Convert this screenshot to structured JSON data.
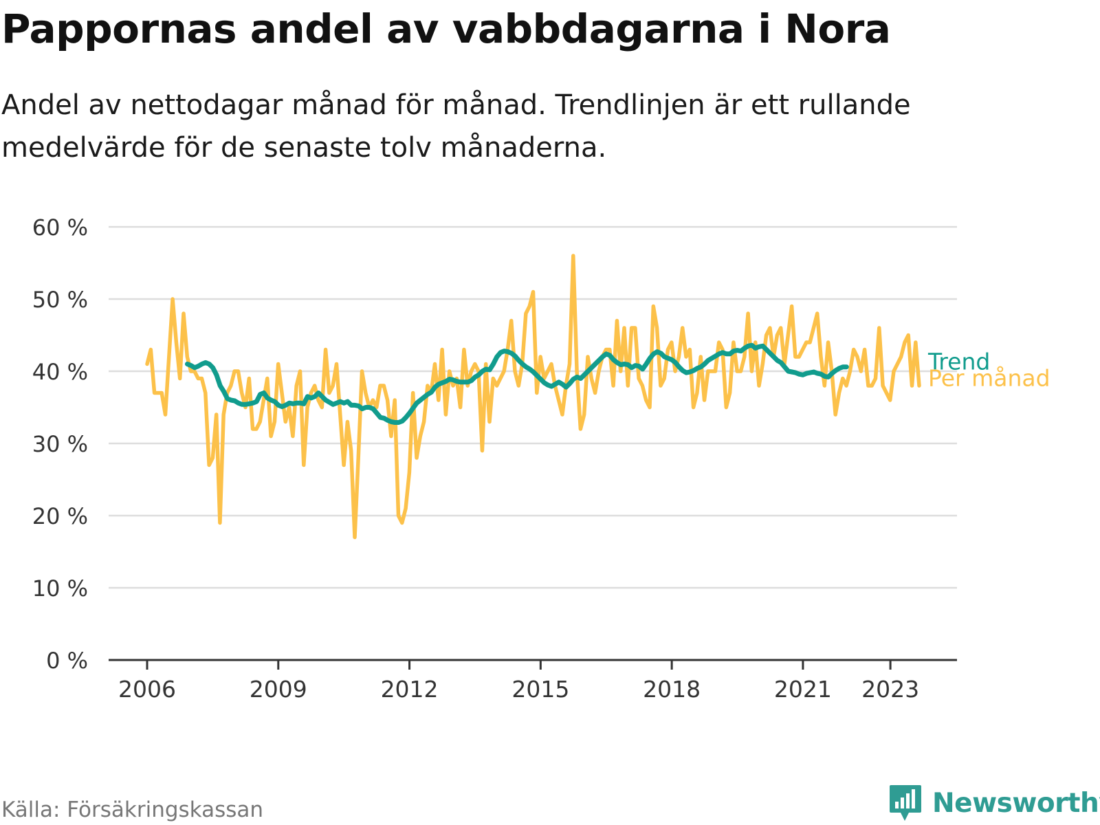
{
  "title": "Pappornas andel av vabbdagarna i Nora",
  "subtitle": "Andel av nettodagar månad för månad. Trendlinjen är ett rullande medelvärde för de senaste tolv månaderna.",
  "source": "Källa: Försäkringskassan",
  "brand": {
    "name": "Newsworthy",
    "icon": "newsworthy-logo-icon",
    "color": "#2f9c93"
  },
  "chart_data": {
    "type": "line",
    "title": "Pappornas andel av vabbdagarna i Nora",
    "ylim": [
      0,
      60
    ],
    "xlim": [
      2006.0,
      2023.9
    ],
    "y_ticks": [
      {
        "value": 0,
        "label": "0 %"
      },
      {
        "value": 10,
        "label": "10 %"
      },
      {
        "value": 20,
        "label": "20 %"
      },
      {
        "value": 30,
        "label": "30 %"
      },
      {
        "value": 40,
        "label": "40 %"
      },
      {
        "value": 50,
        "label": "50 %"
      },
      {
        "value": 60,
        "label": "60 %"
      }
    ],
    "x_ticks": [
      {
        "value": 2006,
        "label": "2006"
      },
      {
        "value": 2009,
        "label": "2009"
      },
      {
        "value": 2012,
        "label": "2012"
      },
      {
        "value": 2015,
        "label": "2015"
      },
      {
        "value": 2018,
        "label": "2018"
      },
      {
        "value": 2021,
        "label": "2021"
      },
      {
        "value": 2023,
        "label": "2023"
      }
    ],
    "grid": true,
    "series": [
      {
        "name": "Per månad",
        "color": "#fcc14a",
        "start": 2006.0,
        "step_years": 0.0833,
        "values": [
          41,
          43,
          37,
          37,
          37,
          34,
          42,
          50,
          44,
          39,
          48,
          42,
          40,
          40,
          39,
          39,
          37,
          27,
          28,
          34,
          19,
          34,
          37,
          38,
          40,
          40,
          37,
          35,
          39,
          32,
          32,
          33,
          36,
          39,
          31,
          33,
          41,
          37,
          33,
          35,
          31,
          38,
          40,
          27,
          35,
          37,
          38,
          36,
          35,
          43,
          37,
          38,
          41,
          34,
          27,
          33,
          29,
          17,
          28,
          40,
          37,
          35,
          36,
          35,
          38,
          38,
          36,
          31,
          36,
          20,
          19,
          21,
          26,
          37,
          28,
          31,
          33,
          38,
          37,
          41,
          36,
          43,
          34,
          40,
          38,
          39,
          35,
          43,
          38,
          40,
          41,
          40,
          29,
          41,
          33,
          39,
          38,
          39,
          40,
          43,
          47,
          40,
          38,
          41,
          48,
          49,
          51,
          37,
          42,
          39,
          40,
          41,
          38,
          36,
          34,
          38,
          41,
          56,
          40,
          32,
          34,
          42,
          39,
          37,
          40,
          42,
          43,
          43,
          38,
          47,
          40,
          46,
          38,
          46,
          46,
          39,
          38,
          36,
          35,
          49,
          46,
          38,
          39,
          43,
          44,
          40,
          42,
          46,
          42,
          43,
          35,
          37,
          42,
          36,
          40,
          40,
          40,
          44,
          43,
          35,
          37,
          44,
          40,
          40,
          42,
          48,
          40,
          44,
          38,
          41,
          45,
          46,
          42,
          45,
          46,
          41,
          45,
          49,
          42,
          42,
          43,
          44,
          44,
          46,
          48,
          42,
          38,
          44,
          40,
          34,
          37,
          39,
          38,
          40,
          43,
          42,
          40,
          43,
          38,
          38,
          39,
          46,
          38,
          37,
          36,
          40,
          41,
          42,
          44,
          45,
          38,
          44,
          38
        ]
      },
      {
        "name": "Trend",
        "color": "#119c8d",
        "start": 2006.92,
        "step_years": 0.0833,
        "values": [
          41.0,
          40.8,
          40.5,
          40.7,
          41.0,
          41.2,
          41.0,
          40.5,
          39.5,
          38.0,
          37.2,
          36.2,
          36.0,
          35.9,
          35.6,
          35.4,
          35.4,
          35.5,
          35.6,
          35.8,
          36.8,
          37.0,
          36.3,
          36.0,
          35.8,
          35.3,
          35.1,
          35.3,
          35.6,
          35.5,
          35.6,
          35.6,
          35.5,
          36.5,
          36.3,
          36.5,
          37.0,
          36.5,
          36.0,
          35.7,
          35.4,
          35.6,
          35.8,
          35.6,
          35.8,
          35.3,
          35.3,
          35.2,
          34.8,
          35.0,
          35.0,
          34.8,
          34.2,
          33.6,
          33.5,
          33.2,
          33.0,
          32.9,
          32.9,
          33.1,
          33.6,
          34.2,
          34.9,
          35.6,
          36.0,
          36.4,
          36.8,
          37.1,
          37.8,
          38.2,
          38.4,
          38.6,
          38.9,
          38.8,
          38.6,
          38.5,
          38.5,
          38.5,
          38.7,
          39.2,
          39.5,
          40.0,
          40.3,
          40.2,
          41.0,
          42.0,
          42.6,
          42.8,
          42.7,
          42.5,
          42.1,
          41.5,
          41.0,
          40.6,
          40.3,
          39.9,
          39.4,
          38.9,
          38.4,
          38.1,
          37.9,
          38.2,
          38.5,
          38.2,
          37.8,
          38.3,
          38.9,
          39.2,
          39.0,
          39.5,
          40.0,
          40.5,
          41.0,
          41.5,
          42.0,
          42.4,
          42.2,
          41.6,
          41.2,
          40.9,
          41.0,
          40.9,
          40.5,
          40.8,
          40.7,
          40.3,
          41.0,
          41.8,
          42.4,
          42.7,
          42.5,
          42.0,
          41.8,
          41.6,
          41.2,
          40.6,
          40.1,
          39.8,
          39.9,
          40.1,
          40.4,
          40.6,
          41.0,
          41.5,
          41.8,
          42.1,
          42.4,
          42.6,
          42.4,
          42.4,
          42.8,
          42.9,
          42.8,
          43.2,
          43.5,
          43.6,
          43.2,
          43.4,
          43.5,
          43.0,
          42.5,
          42.0,
          41.5,
          41.2,
          40.6,
          40.0,
          39.9,
          39.8,
          39.6,
          39.5,
          39.7,
          39.8,
          39.9,
          39.7,
          39.6,
          39.3,
          39.2,
          39.7,
          40.1,
          40.4,
          40.6,
          40.6
        ]
      }
    ],
    "series_labels": {
      "trend": "Trend",
      "monthly": "Per månad"
    }
  }
}
